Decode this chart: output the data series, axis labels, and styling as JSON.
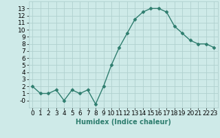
{
  "x": [
    0,
    1,
    2,
    3,
    4,
    5,
    6,
    7,
    8,
    9,
    10,
    11,
    12,
    13,
    14,
    15,
    16,
    17,
    18,
    19,
    20,
    21,
    22,
    23
  ],
  "y": [
    2,
    1,
    1,
    1.5,
    0,
    1.5,
    1,
    1.5,
    -0.5,
    2,
    5,
    7.5,
    9.5,
    11.5,
    12.5,
    13,
    13,
    12.5,
    10.5,
    9.5,
    8.5,
    8,
    8,
    7.5
  ],
  "line_color": "#2e7d6e",
  "marker": "D",
  "marker_size": 2.5,
  "bg_color": "#ceeae8",
  "grid_color": "#b0d0ce",
  "xlabel": "Humidex (Indice chaleur)",
  "xlim": [
    -0.5,
    23.5
  ],
  "ylim": [
    -1,
    14
  ],
  "yticks": [
    0,
    1,
    2,
    3,
    4,
    5,
    6,
    7,
    8,
    9,
    10,
    11,
    12,
    13
  ],
  "ytick_labels": [
    "-0",
    "1",
    "2",
    "3",
    "4",
    "5",
    "6",
    "7",
    "8",
    "9",
    "10",
    "11",
    "12",
    "13"
  ],
  "xticks": [
    0,
    1,
    2,
    3,
    4,
    5,
    6,
    7,
    8,
    9,
    10,
    11,
    12,
    13,
    14,
    15,
    16,
    17,
    18,
    19,
    20,
    21,
    22,
    23
  ],
  "xlabel_fontsize": 7,
  "ytick_fontsize": 6.5,
  "xtick_fontsize": 6.5
}
